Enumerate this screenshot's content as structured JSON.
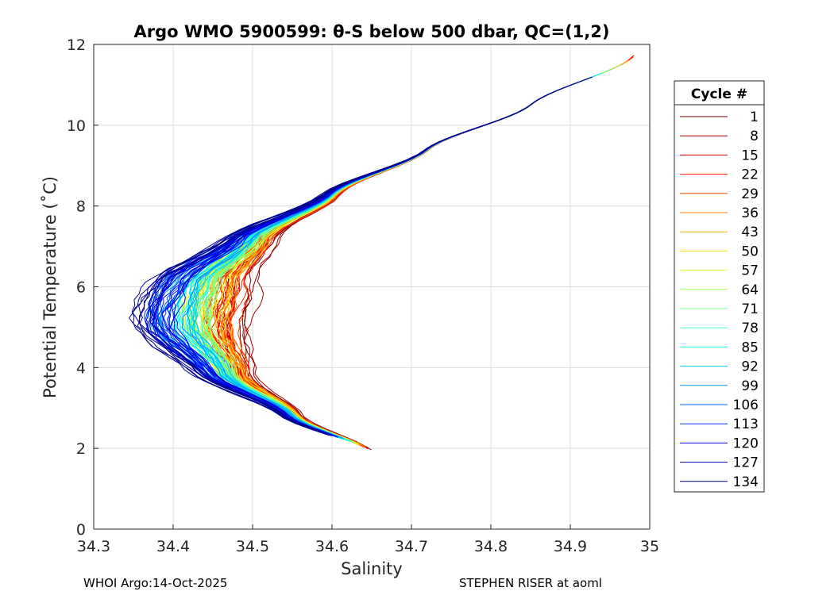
{
  "chart_data": {
    "type": "line",
    "title": "Argo WMO 5900599: θ-S below 500 dbar,  QC=(1,2)",
    "xlabel": "Salinity",
    "ylabel": "Potential Temperature (˚C)",
    "xlim": [
      34.3,
      35.0
    ],
    "ylim": [
      0,
      12
    ],
    "xticks": [
      "34.3",
      "34.4",
      "34.5",
      "34.6",
      "34.7",
      "34.8",
      "34.9",
      "35"
    ],
    "yticks": [
      "0",
      "2",
      "4",
      "6",
      "8",
      "10",
      "12"
    ],
    "grid": true,
    "legend": {
      "title": "Cycle #",
      "placement": "right",
      "entries": [
        {
          "label": "1",
          "color": "#800000"
        },
        {
          "label": "8",
          "color": "#a80000"
        },
        {
          "label": "15",
          "color": "#d50000"
        },
        {
          "label": "22",
          "color": "#ff1a00"
        },
        {
          "label": "29",
          "color": "#ff4d00"
        },
        {
          "label": "36",
          "color": "#ff8000"
        },
        {
          "label": "43",
          "color": "#ffb300"
        },
        {
          "label": "50",
          "color": "#ffe600"
        },
        {
          "label": "57",
          "color": "#d9ff26"
        },
        {
          "label": "64",
          "color": "#a6ff59"
        },
        {
          "label": "71",
          "color": "#73ff8c"
        },
        {
          "label": "78",
          "color": "#40ffbf"
        },
        {
          "label": "85",
          "color": "#0dfff2"
        },
        {
          "label": "92",
          "color": "#00ccff"
        },
        {
          "label": "99",
          "color": "#0099ff"
        },
        {
          "label": "106",
          "color": "#0066ff"
        },
        {
          "label": "113",
          "color": "#0033ff"
        },
        {
          "label": "120",
          "color": "#0000ea"
        },
        {
          "label": "127",
          "color": "#0000b6"
        },
        {
          "label": "134",
          "color": "#000080"
        }
      ]
    },
    "profile_shape": {
      "description_points": [
        {
          "S": 34.65,
          "T": 1.9
        },
        {
          "S": 34.55,
          "T": 2.8
        },
        {
          "S": 34.47,
          "T": 3.8
        },
        {
          "S": 34.44,
          "T": 5.0
        },
        {
          "S": 34.45,
          "T": 6.2
        },
        {
          "S": 34.5,
          "T": 7.2
        },
        {
          "S": 34.6,
          "T": 8.3
        },
        {
          "S": 34.72,
          "T": 9.4
        },
        {
          "S": 34.85,
          "T": 10.5
        },
        {
          "S": 34.98,
          "T": 11.7
        }
      ],
      "n_profiles": 134
    }
  },
  "footer": {
    "left": "WHOI Argo:14-Oct-2025",
    "right": "STEPHEN RISER at aoml"
  }
}
